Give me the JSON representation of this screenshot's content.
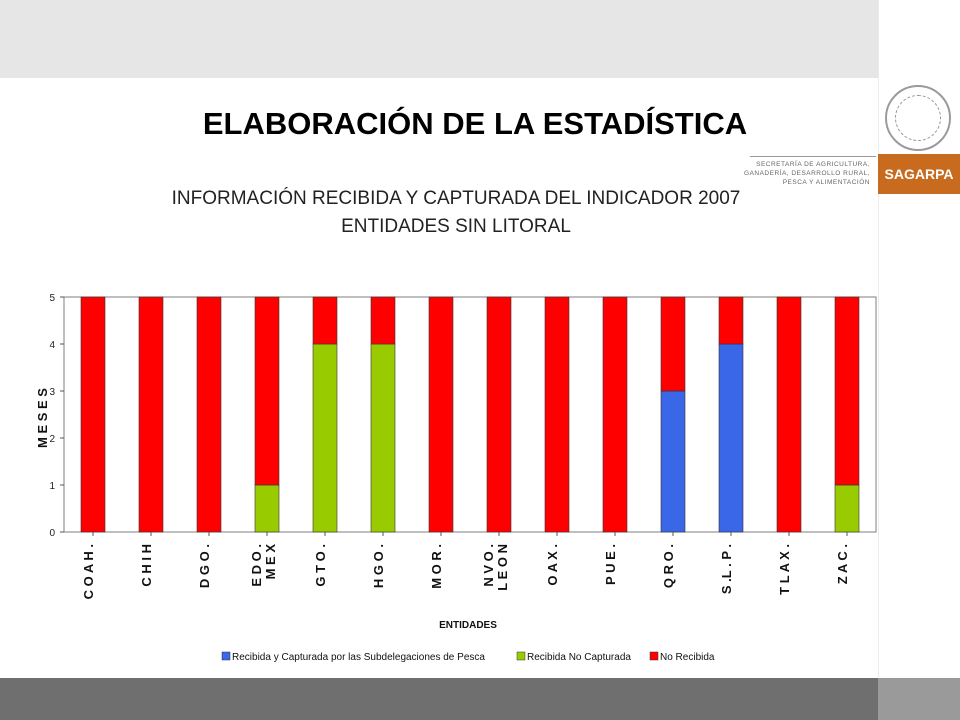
{
  "header": {
    "title": "ELABORACIÓN DE LA ESTADÍSTICA",
    "subtitle_line1": "INFORMACIÓN RECIBIDA Y CAPTURADA DEL INDICADOR 2007",
    "subtitle_line2": "ENTIDADES SIN LITORAL"
  },
  "brand": {
    "name": "SAGARPA",
    "sub_line1": "SECRETARÍA DE AGRICULTURA,",
    "sub_line2": "GANADERÍA, DESARROLLO RURAL,",
    "sub_line3": "PESCA Y ALIMENTACIÓN",
    "seal_text": "ESTADOS UNIDOS MEXICANOS"
  },
  "chart_data": {
    "type": "bar",
    "stacked": true,
    "xlabel": "ENTIDADES",
    "ylabel": "M E S E S",
    "ylim": [
      0,
      5
    ],
    "yticks": [
      "0",
      "1",
      "2",
      "3",
      "4",
      "5"
    ],
    "categories": [
      "C O A H .",
      "C H I H",
      "D G O .",
      "E D O .\nM E X",
      "G T O .",
      "H G O .",
      "M O R .",
      "N V O .\nL E O N",
      "O A X .",
      "P U E .",
      "Q R O .",
      "S .L . P .",
      "T L A X .",
      "Z A C ."
    ],
    "series": [
      {
        "name": "Recibida y Capturada por las Subdelegaciones de Pesca",
        "color": "#3a66e8",
        "values": [
          0,
          0,
          0,
          0,
          0,
          0,
          0,
          0,
          0,
          0,
          3,
          4,
          0,
          0
        ]
      },
      {
        "name": "Recibida No Capturada",
        "color": "#99cc00",
        "values": [
          0,
          0,
          0,
          1,
          4,
          4,
          0,
          0,
          0,
          0,
          0,
          0,
          0,
          1
        ]
      },
      {
        "name": "No Recibida",
        "color": "#ff0000",
        "values": [
          5,
          5,
          5,
          4,
          1,
          1,
          5,
          5,
          5,
          5,
          2,
          1,
          5,
          4
        ]
      }
    ],
    "legend_position": "bottom",
    "grid": false
  }
}
